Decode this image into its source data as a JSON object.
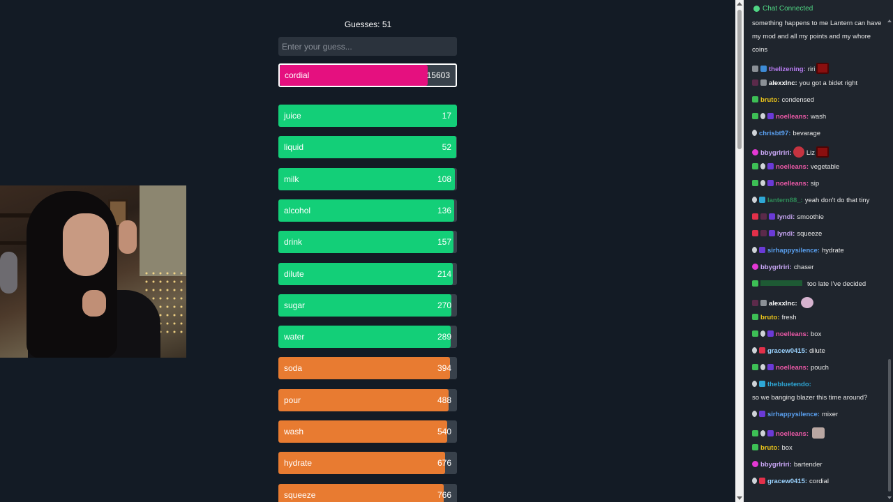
{
  "game": {
    "guesses_label": "Guesses: 51",
    "input_placeholder": "Enter your guess...",
    "current": {
      "word": "cordial",
      "rank": "15603",
      "fill": 0.84,
      "color": "#e5107f"
    },
    "guesses": [
      {
        "word": "juice",
        "rank": "17",
        "fill": 1.0,
        "color": "#13cf78"
      },
      {
        "word": "liquid",
        "rank": "52",
        "fill": 0.995,
        "color": "#13cf78"
      },
      {
        "word": "milk",
        "rank": "108",
        "fill": 0.99,
        "color": "#13cf78"
      },
      {
        "word": "alcohol",
        "rank": "136",
        "fill": 0.985,
        "color": "#13cf78"
      },
      {
        "word": "drink",
        "rank": "157",
        "fill": 0.98,
        "color": "#13cf78"
      },
      {
        "word": "dilute",
        "rank": "214",
        "fill": 0.975,
        "color": "#13cf78"
      },
      {
        "word": "sugar",
        "rank": "270",
        "fill": 0.97,
        "color": "#13cf78"
      },
      {
        "word": "water",
        "rank": "289",
        "fill": 0.965,
        "color": "#13cf78"
      },
      {
        "word": "soda",
        "rank": "394",
        "fill": 0.96,
        "color": "#e87b31"
      },
      {
        "word": "pour",
        "rank": "488",
        "fill": 0.955,
        "color": "#e87b31"
      },
      {
        "word": "wash",
        "rank": "540",
        "fill": 0.945,
        "color": "#e87b31"
      },
      {
        "word": "hydrate",
        "rank": "676",
        "fill": 0.935,
        "color": "#e87b31"
      },
      {
        "word": "squeeze",
        "rank": "766",
        "fill": 0.925,
        "color": "#e87b31"
      }
    ]
  },
  "chat": {
    "status": "Chat Connected",
    "messages": [
      {
        "lines": [
          "something happens to me Lantern can have",
          "my mod and all my points and my whore",
          "coins"
        ],
        "user": "",
        "user_color": "",
        "text": "",
        "badges": []
      },
      {
        "user": "thelizening:",
        "user_color": "#b87cf2",
        "text": "riri",
        "badges": [
          "b-grey",
          "b-blue"
        ],
        "emote": "e-red"
      },
      {
        "user": "alexxlnc:",
        "user_color": "#ffffff",
        "text": "you got a bidet right",
        "badges": [
          "b-dark",
          "b-grey"
        ]
      },
      {
        "user": "bruto:",
        "user_color": "#e8c21a",
        "text": "condensed",
        "badges": [
          "b-green"
        ]
      },
      {
        "user": "noelleans:",
        "user_color": "#ee5aa9",
        "text": "wash",
        "badges": [
          "b-green",
          "b-white",
          "b-purple"
        ]
      },
      {
        "user": "chrisbt97:",
        "user_color": "#5aa0f0",
        "text": "bevarage",
        "badges": [
          "b-white"
        ]
      },
      {
        "user": "bbygrlriri:",
        "user_color": "#c8a6f4",
        "text": "Liz",
        "badges": [
          "b-pink"
        ],
        "emote_pre": "e-rose",
        "emote": "e-red"
      },
      {
        "user": "noelleans:",
        "user_color": "#ee5aa9",
        "text": "vegetable",
        "badges": [
          "b-green",
          "b-white",
          "b-purple"
        ]
      },
      {
        "user": "noelleans:",
        "user_color": "#ee5aa9",
        "text": "sip",
        "badges": [
          "b-green",
          "b-white",
          "b-purple"
        ]
      },
      {
        "user": "lantern88_:",
        "user_color": "#2e8b57",
        "text": "yeah don't do that tiny",
        "badges": [
          "b-white",
          "b-cyan"
        ]
      },
      {
        "user": "lyndi:",
        "user_color": "#c8a6f4",
        "text": "smoothie",
        "badges": [
          "b-red",
          "b-dark",
          "b-purple"
        ]
      },
      {
        "user": "lyndi:",
        "user_color": "#c8a6f4",
        "text": "squeeze",
        "badges": [
          "b-red",
          "b-dark",
          "b-purple"
        ]
      },
      {
        "user": "sirhappysilence:",
        "user_color": "#5aa0f0",
        "text": "hydrate",
        "badges": [
          "b-white",
          "b-purple"
        ]
      },
      {
        "user": "bbygrlriri:",
        "user_color": "#c8a6f4",
        "text": "chaser",
        "badges": [
          "b-pink"
        ]
      },
      {
        "user": "",
        "user_color": "#1e5a34",
        "text": "too late I've decided",
        "badges": [
          "b-green"
        ],
        "hidden_user_width": 60
      },
      {
        "user": "alexxlnc:",
        "user_color": "#ffffff",
        "text": "",
        "badges": [
          "b-dark",
          "b-grey"
        ],
        "emote": "e-pink"
      },
      {
        "user": "bruto:",
        "user_color": "#e8c21a",
        "text": "fresh",
        "badges": [
          "b-green"
        ]
      },
      {
        "user": "noelleans:",
        "user_color": "#ee5aa9",
        "text": "box",
        "badges": [
          "b-green",
          "b-white",
          "b-purple"
        ]
      },
      {
        "user": "gracew0415:",
        "user_color": "#9bd3ff",
        "text": "dilute",
        "badges": [
          "b-white",
          "b-red"
        ]
      },
      {
        "user": "noelleans:",
        "user_color": "#ee5aa9",
        "text": "pouch",
        "badges": [
          "b-green",
          "b-white",
          "b-purple"
        ]
      },
      {
        "user": "thebluetendo:",
        "user_color": "#2ea7d6",
        "text": "",
        "badges": [
          "b-white",
          "b-cyan"
        ],
        "lines_after": [
          "so we banging blazer this time around?"
        ]
      },
      {
        "user": "sirhappysilence:",
        "user_color": "#5aa0f0",
        "text": "mixer",
        "badges": [
          "b-white",
          "b-purple"
        ]
      },
      {
        "user": "noelleans:",
        "user_color": "#ee5aa9",
        "text": "",
        "badges": [
          "b-green",
          "b-white",
          "b-purple"
        ],
        "emote": "e-gray"
      },
      {
        "user": "bruto:",
        "user_color": "#e8c21a",
        "text": "box",
        "badges": [
          "b-green"
        ]
      },
      {
        "user": "bbygrlriri:",
        "user_color": "#c8a6f4",
        "text": "bartender",
        "badges": [
          "b-pink"
        ]
      },
      {
        "user": "gracew0415:",
        "user_color": "#9bd3ff",
        "text": "cordial",
        "badges": [
          "b-white",
          "b-red"
        ]
      }
    ]
  }
}
